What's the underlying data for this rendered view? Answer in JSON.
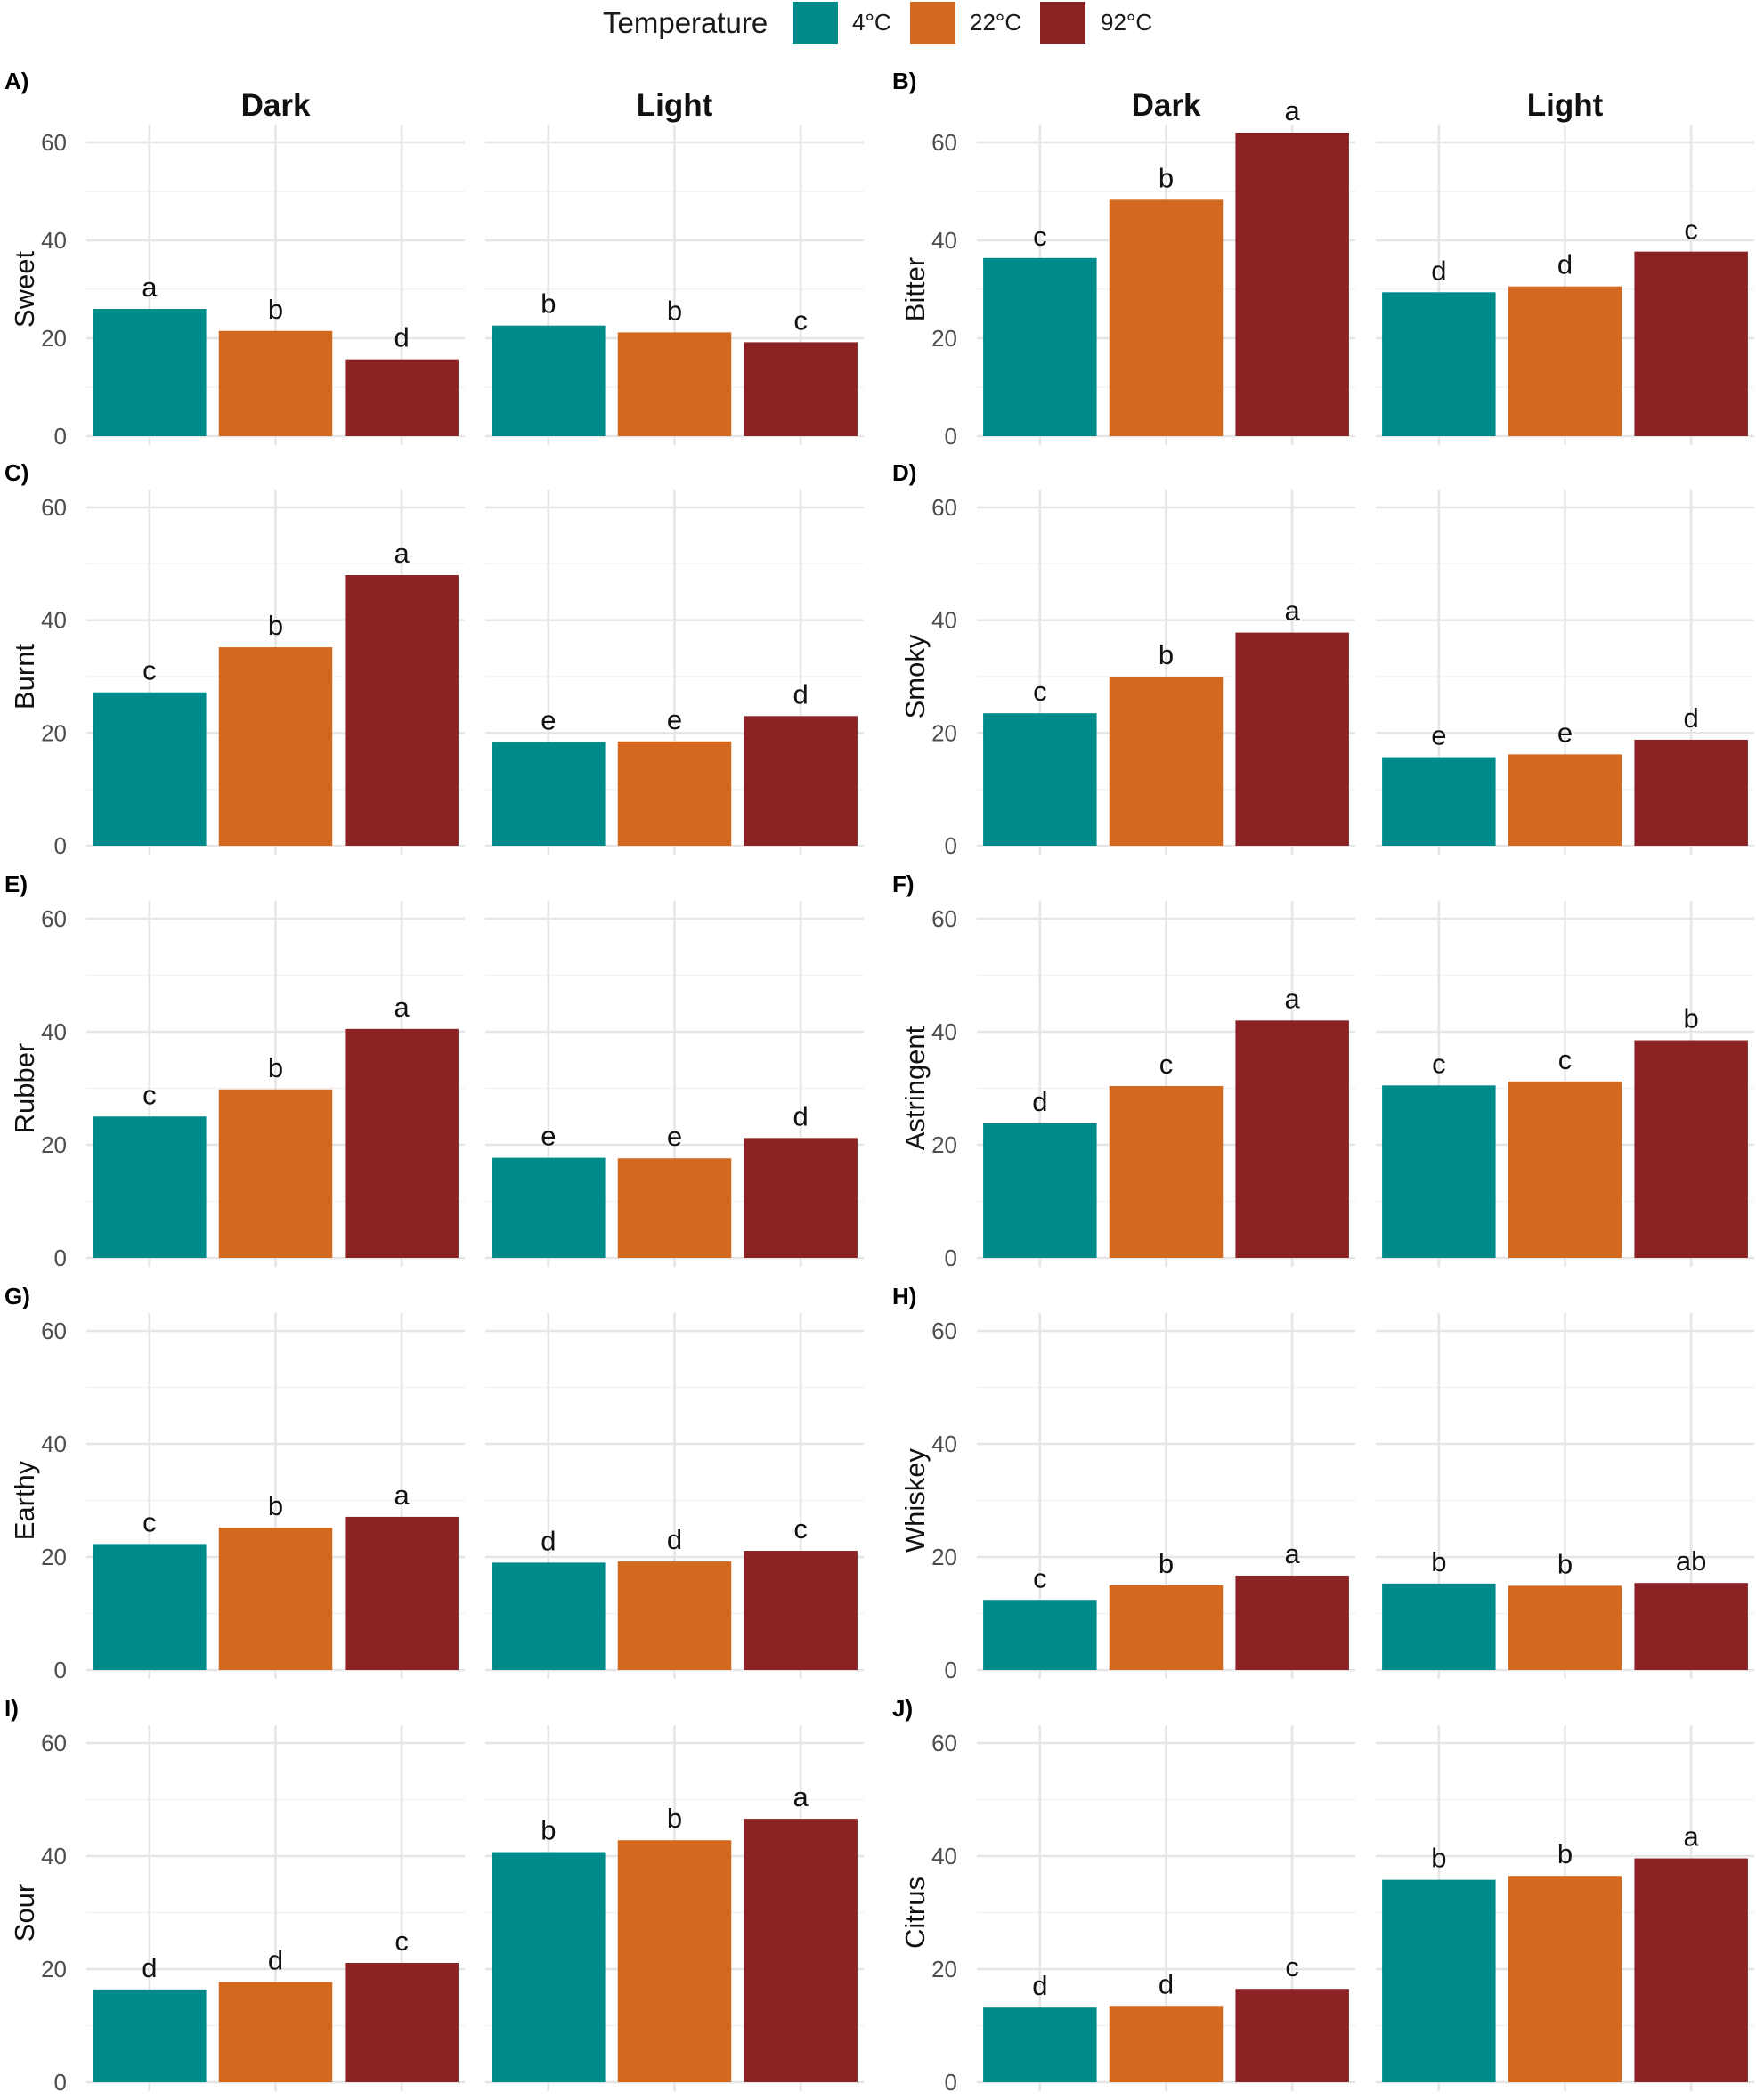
{
  "chart_data": {
    "type": "bar",
    "legend": {
      "title": "Temperature",
      "position": "top",
      "entries": [
        {
          "label": "4°C",
          "color": "#008B8B"
        },
        {
          "label": "22°C",
          "color": "#D2691E"
        },
        {
          "label": "92°C",
          "color": "#8B2325"
        }
      ]
    },
    "facets": [
      "Dark",
      "Light"
    ],
    "ylim": [
      0,
      65
    ],
    "yticks": [
      0,
      20,
      40,
      60
    ],
    "grid": true,
    "panels": [
      {
        "label": "A)",
        "ylabel": "Sweet",
        "Dark": {
          "values": [
            26,
            21.5,
            15.7
          ],
          "letters": [
            "a",
            "b",
            "d"
          ]
        },
        "Light": {
          "values": [
            22.6,
            21.2,
            19.2
          ],
          "letters": [
            "b",
            "b",
            "c"
          ]
        }
      },
      {
        "label": "B)",
        "ylabel": "Bitter",
        "Dark": {
          "values": [
            36.4,
            48.3,
            62
          ],
          "letters": [
            "c",
            "b",
            "a"
          ]
        },
        "Light": {
          "values": [
            29.4,
            30.6,
            37.7
          ],
          "letters": [
            "d",
            "d",
            "c"
          ]
        }
      },
      {
        "label": "C)",
        "ylabel": "Burnt",
        "Dark": {
          "values": [
            27.2,
            35.2,
            48
          ],
          "letters": [
            "c",
            "b",
            "a"
          ]
        },
        "Light": {
          "values": [
            18.4,
            18.5,
            23
          ],
          "letters": [
            "e",
            "e",
            "d"
          ]
        }
      },
      {
        "label": "D)",
        "ylabel": "Smoky",
        "Dark": {
          "values": [
            23.5,
            30,
            37.8
          ],
          "letters": [
            "c",
            "b",
            "a"
          ]
        },
        "Light": {
          "values": [
            15.7,
            16.2,
            18.8
          ],
          "letters": [
            "e",
            "e",
            "d"
          ]
        }
      },
      {
        "label": "E)",
        "ylabel": "Rubber",
        "Dark": {
          "values": [
            25,
            29.8,
            40.5
          ],
          "letters": [
            "c",
            "b",
            "a"
          ]
        },
        "Light": {
          "values": [
            17.7,
            17.6,
            21.2
          ],
          "letters": [
            "e",
            "e",
            "d"
          ]
        }
      },
      {
        "label": "F)",
        "ylabel": "Astringent",
        "Dark": {
          "values": [
            23.8,
            30.4,
            42
          ],
          "letters": [
            "d",
            "c",
            "a"
          ]
        },
        "Light": {
          "values": [
            30.5,
            31.2,
            38.5
          ],
          "letters": [
            "c",
            "c",
            "b"
          ]
        }
      },
      {
        "label": "G)",
        "ylabel": "Earthy",
        "Dark": {
          "values": [
            22.3,
            25.2,
            27.1
          ],
          "letters": [
            "c",
            "b",
            "a"
          ]
        },
        "Light": {
          "values": [
            19,
            19.2,
            21.1
          ],
          "letters": [
            "d",
            "d",
            "c"
          ]
        }
      },
      {
        "label": "H)",
        "ylabel": "Whiskey",
        "Dark": {
          "values": [
            12.4,
            15,
            16.7
          ],
          "letters": [
            "c",
            "b",
            "a"
          ]
        },
        "Light": {
          "values": [
            15.3,
            14.9,
            15.4
          ],
          "letters": [
            "b",
            "b",
            "ab"
          ]
        }
      },
      {
        "label": "I)",
        "ylabel": "Sour",
        "Dark": {
          "values": [
            16.4,
            17.7,
            21.1
          ],
          "letters": [
            "d",
            "d",
            "c"
          ]
        },
        "Light": {
          "values": [
            40.7,
            42.8,
            46.6
          ],
          "letters": [
            "b",
            "b",
            "a"
          ]
        }
      },
      {
        "label": "J)",
        "ylabel": "Citrus",
        "Dark": {
          "values": [
            13.2,
            13.5,
            16.5
          ],
          "letters": [
            "d",
            "d",
            "c"
          ]
        },
        "Light": {
          "values": [
            35.8,
            36.5,
            39.6
          ],
          "letters": [
            "b",
            "b",
            "a"
          ]
        }
      }
    ]
  }
}
